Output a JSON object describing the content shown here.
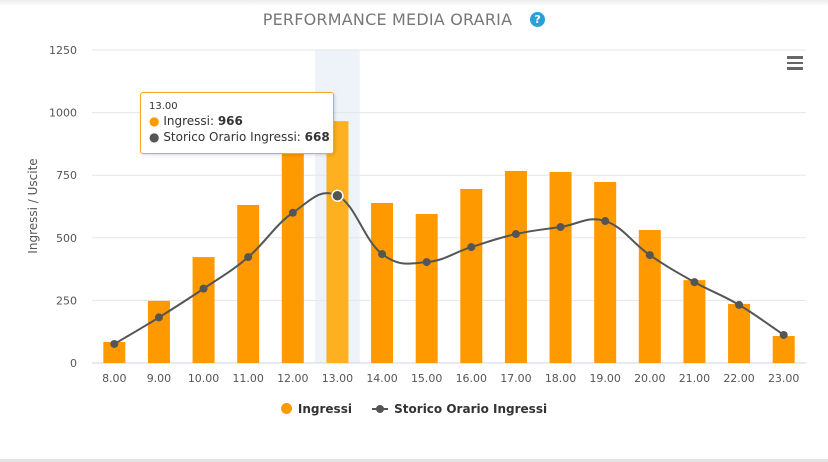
{
  "header": {
    "title": "PERFORMANCE MEDIA ORARIA",
    "help_icon": "?",
    "menu_icon": "hamburger-menu-icon"
  },
  "colors": {
    "bar": "#ff9900",
    "bar_hover": "#ffb020",
    "line": "#555555",
    "highlight_band": "#eef3fa",
    "tooltip_border": "#f5a623"
  },
  "tooltip": {
    "header": "13.00",
    "rows": [
      {
        "label": "Ingressi: ",
        "value": "966",
        "dot": "●"
      },
      {
        "label": "Storico Orario Ingressi: ",
        "value": "668",
        "dot": "●"
      }
    ]
  },
  "legend": {
    "items": [
      {
        "label": "Ingressi"
      },
      {
        "label": "Storico Orario Ingressi"
      }
    ]
  },
  "chart_data": {
    "type": "bar",
    "title": "PERFORMANCE MEDIA ORARIA",
    "xlabel": "",
    "ylabel": "Ingressi / Uscite",
    "ylim": [
      0,
      1250
    ],
    "yticks": [
      0,
      250,
      500,
      750,
      1000,
      1250
    ],
    "grid": true,
    "legend_position": "bottom",
    "categories": [
      "8.00",
      "9.00",
      "10.00",
      "11.00",
      "12.00",
      "13.00",
      "14.00",
      "15.00",
      "16.00",
      "17.00",
      "18.00",
      "19.00",
      "20.00",
      "21.00",
      "22.00",
      "23.00"
    ],
    "series": [
      {
        "name": "Ingressi",
        "type": "bar",
        "values": [
          84,
          248,
          423,
          631,
          860,
          966,
          639,
          595,
          695,
          767,
          763,
          723,
          531,
          331,
          236,
          108
        ]
      },
      {
        "name": "Storico Orario Ingressi",
        "type": "line",
        "values": [
          76,
          182,
          297,
          423,
          600,
          668,
          435,
          403,
          463,
          515,
          543,
          567,
          431,
          323,
          232,
          112
        ]
      }
    ],
    "highlighted_category": "13.00"
  }
}
